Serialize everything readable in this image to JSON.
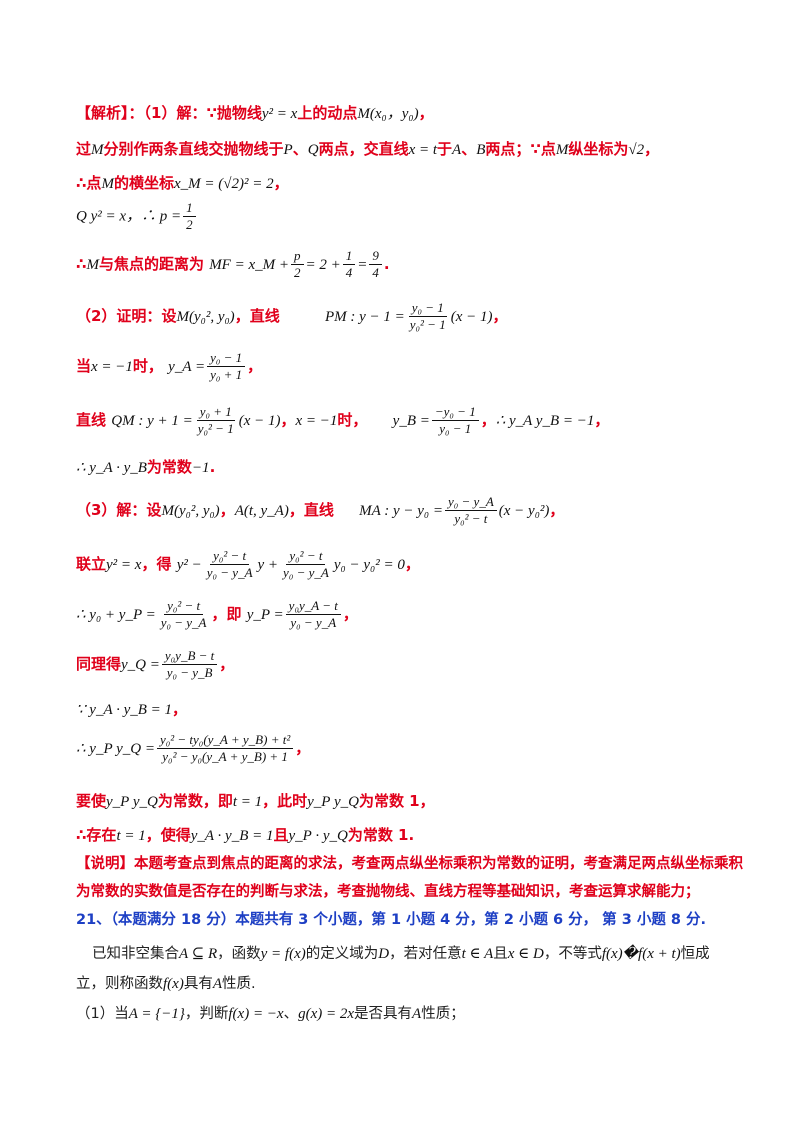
{
  "lines": {
    "l1": {
      "a": "【解析】：（1）解：∵抛物线",
      "m1": "y² = x",
      "b": "上的动点",
      "m2": "M(x₀，y₀)",
      "c": "，"
    },
    "l2": {
      "a": "过",
      "m1": "M",
      "b": "分别作两条直线交抛物线于",
      "m2": "P",
      "c": "、",
      "m3": "Q",
      "d": "两点，交直线",
      "m4": "x = t",
      "e": "于",
      "m5": "A",
      "f": "、",
      "m6": "B",
      "g": "两点；∵点",
      "m7": "M",
      "h": "纵坐标为",
      "m8": "√2",
      "i": "，"
    },
    "l3": {
      "a": "∴点",
      "m1": "M",
      "b": "的横坐标",
      "m2": "x_M = (√2)² = 2",
      "c": "，"
    },
    "l4": {
      "m1": "Q y² = x",
      "m2": "，∴ p =",
      "num": "1",
      "den": "2"
    },
    "l5": {
      "a": "∴",
      "m1": "M",
      "b": "与焦点的距离为",
      "m2": "MF = x_M +",
      "n1": "p",
      "d1": "2",
      "m3": "= 2 +",
      "n2": "1",
      "d2": "4",
      "m4": "=",
      "n3": "9",
      "d3": "4",
      "c": "."
    },
    "l6": {
      "a": "（2）证明：设",
      "m1": "M(y₀², y₀)",
      "b": "，直线",
      "m2": "PM : y − 1 =",
      "num": "y₀ − 1",
      "den": "y₀² − 1",
      "m3": "(x − 1)",
      "c": "，"
    },
    "l7": {
      "a": "当",
      "m1": "x = −1",
      "b": "时，",
      "m2": "y_A =",
      "num": "y₀ − 1",
      "den": "y₀ + 1",
      "c": "，"
    },
    "l8": {
      "a": "直线",
      "m1": "QM : y + 1 =",
      "n1": "y₀ + 1",
      "d1": "y₀² − 1",
      "m2": "(x − 1)",
      "b": "，",
      "m3": "x = −1",
      "c": "时，",
      "m4": "y_B =",
      "n2": "−y₀ − 1",
      "d2": "y₀ − 1",
      "d": "，",
      "m5": "∴ y_A y_B = −1",
      "e": "，"
    },
    "l9": {
      "m1": "∴ y_A · y_B",
      "a": "为常数",
      "m2": "−1",
      "b": "."
    },
    "l10": {
      "a": "（3）解：设",
      "m1": "M(y₀², y₀)",
      "b": "，",
      "m2": "A(t, y_A)",
      "c": "，直线",
      "m3": "MA : y − y₀ =",
      "num": "y₀ − y_A",
      "den": "y₀² − t",
      "m4": "(x − y₀²)",
      "d": "，"
    },
    "l11": {
      "a": "联立",
      "m1": "y² = x",
      "b": "，得",
      "m2": "y² −",
      "n1": "y₀² − t",
      "d1": "y₀ − y_A",
      "m3": "y +",
      "n2": "y₀² − t",
      "d2": "y₀ − y_A",
      "m4": "y₀ − y₀² = 0",
      "c": "，"
    },
    "l12": {
      "m1": "∴ y₀ + y_P =",
      "n1": "y₀² − t",
      "d1": "y₀ − y_A",
      "a": "，即",
      "m2": "y_P =",
      "n2": "y₀y_A − t",
      "d2": "y₀ − y_A",
      "b": "，"
    },
    "l13": {
      "a": "同理得",
      "m1": "y_Q =",
      "num": "y₀y_B − t",
      "den": "y₀ − y_B",
      "b": "，"
    },
    "l14": {
      "m1": "∵ y_A · y_B = 1",
      "a": "，"
    },
    "l15": {
      "m1": "∴ y_P y_Q =",
      "num": "y₀² − ty₀(y_A + y_B) + t²",
      "den": "y₀² − y₀(y_A + y_B) + 1",
      "a": "，"
    },
    "l16": {
      "a": "要使",
      "m1": "y_P y_Q",
      "b": "为常数，即",
      "m2": "t = 1",
      "c": "，此时",
      "m3": "y_P y_Q",
      "d": "为常数 1，"
    },
    "l17": {
      "a": "∴存在",
      "m1": "t = 1",
      "b": "，使得",
      "m2": "y_A · y_B = 1",
      "c": "且",
      "m3": "y_P · y_Q",
      "d": "为常数 1."
    },
    "l18": "【说明】本题考查点到焦点的距离的求法，考查两点纵坐标乘积为常数的证明，考查满足两点纵坐标乘积",
    "l19": "为常数的实数值是否存在的判断与求法，考查抛物线、直线方程等基础知识，考查运算求解能力；",
    "l20": {
      "a": "21、",
      "b": "（本题满分 18 分）本题共有 3 个小题，第 1 小题 4 分，第 2 小题 6 分， 第 3 小题 8 分."
    },
    "l21": {
      "a": "已知非空集合",
      "m1": "A ⊆ R",
      "b": "，函数",
      "m2": "y = f(x)",
      "c": "的定义域为",
      "m3": "D",
      "d": "，若对任意",
      "m4": "t ∈ A",
      "e": "且",
      "m5": "x ∈ D",
      "f": "，不等式",
      "m6": "f(x)�f(x + t)",
      "g": "恒成"
    },
    "l22": {
      "a": "立，则称函数",
      "m1": "f(x)",
      "b": "具有",
      "m2": "A",
      "c": "性质."
    },
    "l23": {
      "a": "（1）当",
      "m1": "A = {−1}",
      "b": "，判断",
      "m2": "f(x) = −x",
      "c": "、",
      "m3": "g(x) = 2x",
      "d": "是否具有",
      "m4": "A",
      "e": "性质；"
    }
  }
}
